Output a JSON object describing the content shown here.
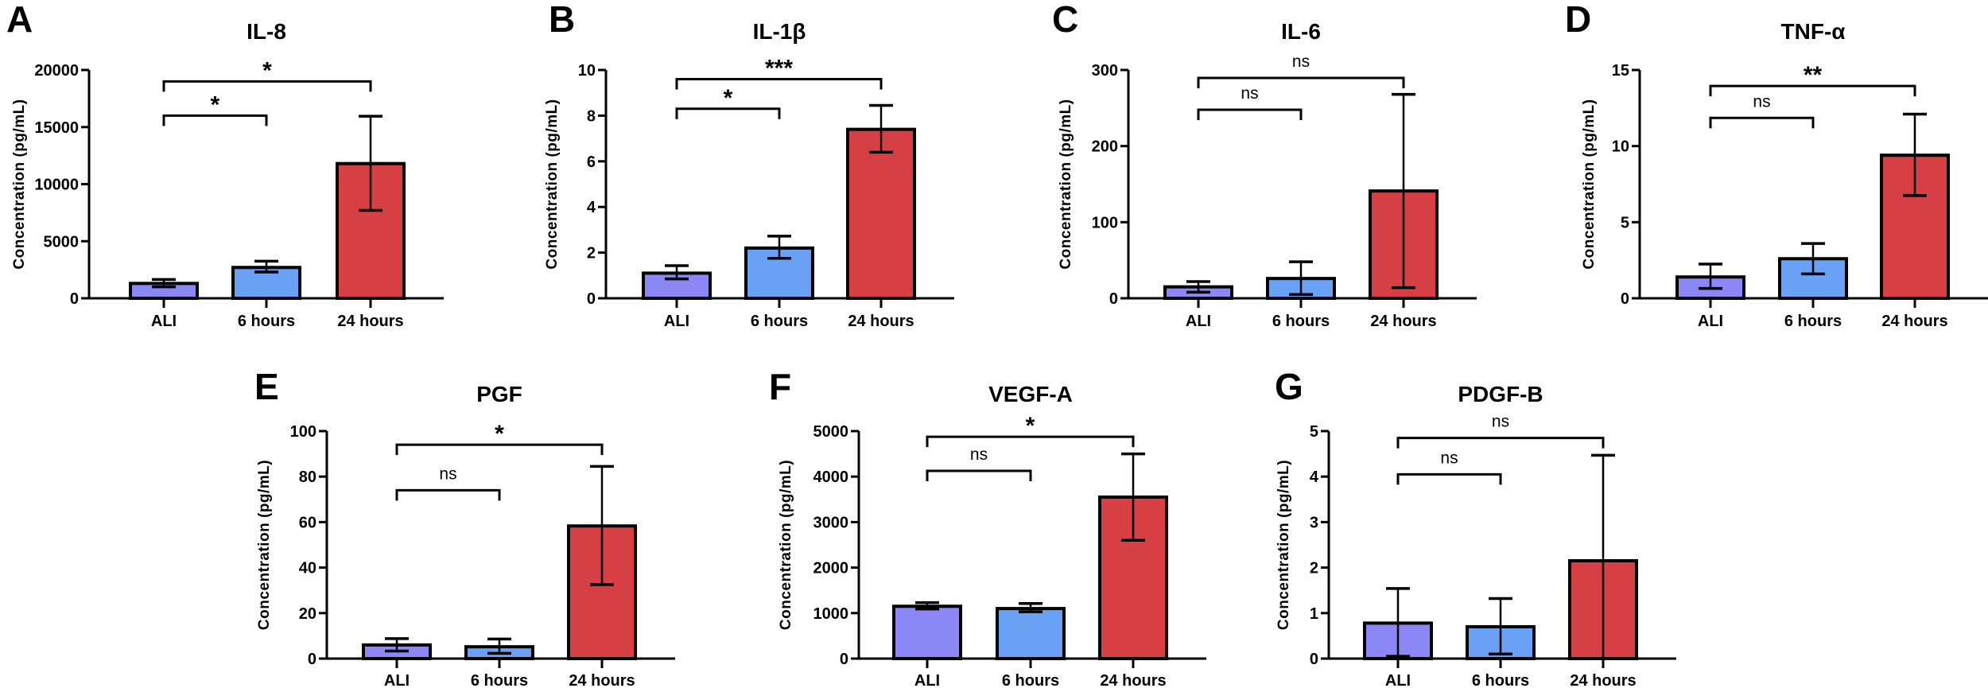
{
  "chart_data": [
    {
      "type": "bar",
      "panel": "A",
      "title": "IL-8",
      "ylabel": "Concentration (pg/mL)",
      "categories": [
        "ALI",
        "6 hours",
        "24 hours"
      ],
      "values": [
        1300,
        2700,
        11800
      ],
      "error_low": [
        1000,
        2300,
        7700
      ],
      "error_high": [
        1650,
        3250,
        15950
      ],
      "ylim": [
        0,
        20000
      ],
      "yticks": [
        "0",
        "5000",
        "10000",
        "15000",
        "20000"
      ],
      "comparisons": [
        {
          "pair": [
            "ALI",
            "6 hours"
          ],
          "label": "*"
        },
        {
          "pair": [
            "ALI",
            "24 hours"
          ],
          "label": "*"
        }
      ]
    },
    {
      "type": "bar",
      "panel": "B",
      "title": "IL-1β",
      "ylabel": "Concentration (pg/mL)",
      "categories": [
        "ALI",
        "6 hours",
        "24 hours"
      ],
      "values": [
        1.1,
        2.2,
        7.4
      ],
      "error_low": [
        0.85,
        1.75,
        6.4
      ],
      "error_high": [
        1.43,
        2.72,
        8.45
      ],
      "ylim": [
        0,
        10
      ],
      "yticks": [
        "0",
        "2",
        "4",
        "6",
        "8",
        "10"
      ],
      "comparisons": [
        {
          "pair": [
            "ALI",
            "6 hours"
          ],
          "label": "*"
        },
        {
          "pair": [
            "ALI",
            "24 hours"
          ],
          "label": "***"
        }
      ]
    },
    {
      "type": "bar",
      "panel": "C",
      "title": "IL-6",
      "ylabel": "Concentration (pg/mL)",
      "categories": [
        "ALI",
        "6 hours",
        "24 hours"
      ],
      "values": [
        15,
        26,
        141
      ],
      "error_low": [
        8,
        5,
        14
      ],
      "error_high": [
        22,
        48,
        268
      ],
      "ylim": [
        0,
        300
      ],
      "yticks": [
        "0",
        "100",
        "200",
        "300"
      ],
      "comparisons": [
        {
          "pair": [
            "ALI",
            "6 hours"
          ],
          "label": "ns"
        },
        {
          "pair": [
            "ALI",
            "24 hours"
          ],
          "label": "ns"
        }
      ]
    },
    {
      "type": "bar",
      "panel": "D",
      "title": "TNF-α",
      "ylabel": "Concentration (pg/mL)",
      "categories": [
        "ALI",
        "6 hours",
        "24 hours"
      ],
      "values": [
        1.4,
        2.6,
        9.4
      ],
      "error_low": [
        0.65,
        1.6,
        6.75
      ],
      "error_high": [
        2.25,
        3.6,
        12.1
      ],
      "ylim": [
        0,
        15
      ],
      "yticks": [
        "0",
        "5",
        "10",
        "15"
      ],
      "comparisons": [
        {
          "pair": [
            "ALI",
            "6 hours"
          ],
          "label": "ns"
        },
        {
          "pair": [
            "ALI",
            "24 hours"
          ],
          "label": "**"
        }
      ]
    },
    {
      "type": "bar",
      "panel": "E",
      "title": "PGF",
      "ylabel": "Concentration (pg/mL)",
      "categories": [
        "ALI",
        "6 hours",
        "24 hours"
      ],
      "values": [
        6,
        5.2,
        58.3
      ],
      "error_low": [
        3.3,
        2.3,
        32.5
      ],
      "error_high": [
        8.8,
        8.6,
        84.5
      ],
      "ylim": [
        0,
        100
      ],
      "yticks": [
        "0",
        "20",
        "40",
        "60",
        "80",
        "100"
      ],
      "comparisons": [
        {
          "pair": [
            "ALI",
            "6 hours"
          ],
          "label": "ns"
        },
        {
          "pair": [
            "ALI",
            "24 hours"
          ],
          "label": "*"
        }
      ]
    },
    {
      "type": "bar",
      "panel": "F",
      "title": "VEGF-A",
      "ylabel": "Concentration (pg/mL)",
      "categories": [
        "ALI",
        "6 hours",
        "24 hours"
      ],
      "values": [
        1150,
        1100,
        3550
      ],
      "error_low": [
        1090,
        1030,
        2600
      ],
      "error_high": [
        1230,
        1210,
        4500
      ],
      "ylim": [
        0,
        5000
      ],
      "yticks": [
        "0",
        "1000",
        "2000",
        "3000",
        "4000",
        "5000"
      ],
      "comparisons": [
        {
          "pair": [
            "ALI",
            "6 hours"
          ],
          "label": "ns"
        },
        {
          "pair": [
            "ALI",
            "24 hours"
          ],
          "label": "*"
        }
      ]
    },
    {
      "type": "bar",
      "panel": "G",
      "title": "PDGF-B",
      "ylabel": "Concentration (pg/mL)",
      "categories": [
        "ALI",
        "6 hours",
        "24 hours"
      ],
      "values": [
        0.78,
        0.7,
        2.15
      ],
      "error_low": [
        0.05,
        0.1,
        0
      ],
      "error_high": [
        1.54,
        1.32,
        4.47
      ],
      "ylim": [
        0,
        5
      ],
      "yticks": [
        "0",
        "1",
        "2",
        "3",
        "4",
        "5"
      ],
      "comparisons": [
        {
          "pair": [
            "ALI",
            "6 hours"
          ],
          "label": "ns"
        },
        {
          "pair": [
            "ALI",
            "24 hours"
          ],
          "label": "ns"
        }
      ]
    }
  ],
  "colors": {
    "ALI": "#8b88f5",
    "6 hours": "#6ba1f4",
    "24 hours": "#d64045",
    "outline": "#000000"
  }
}
